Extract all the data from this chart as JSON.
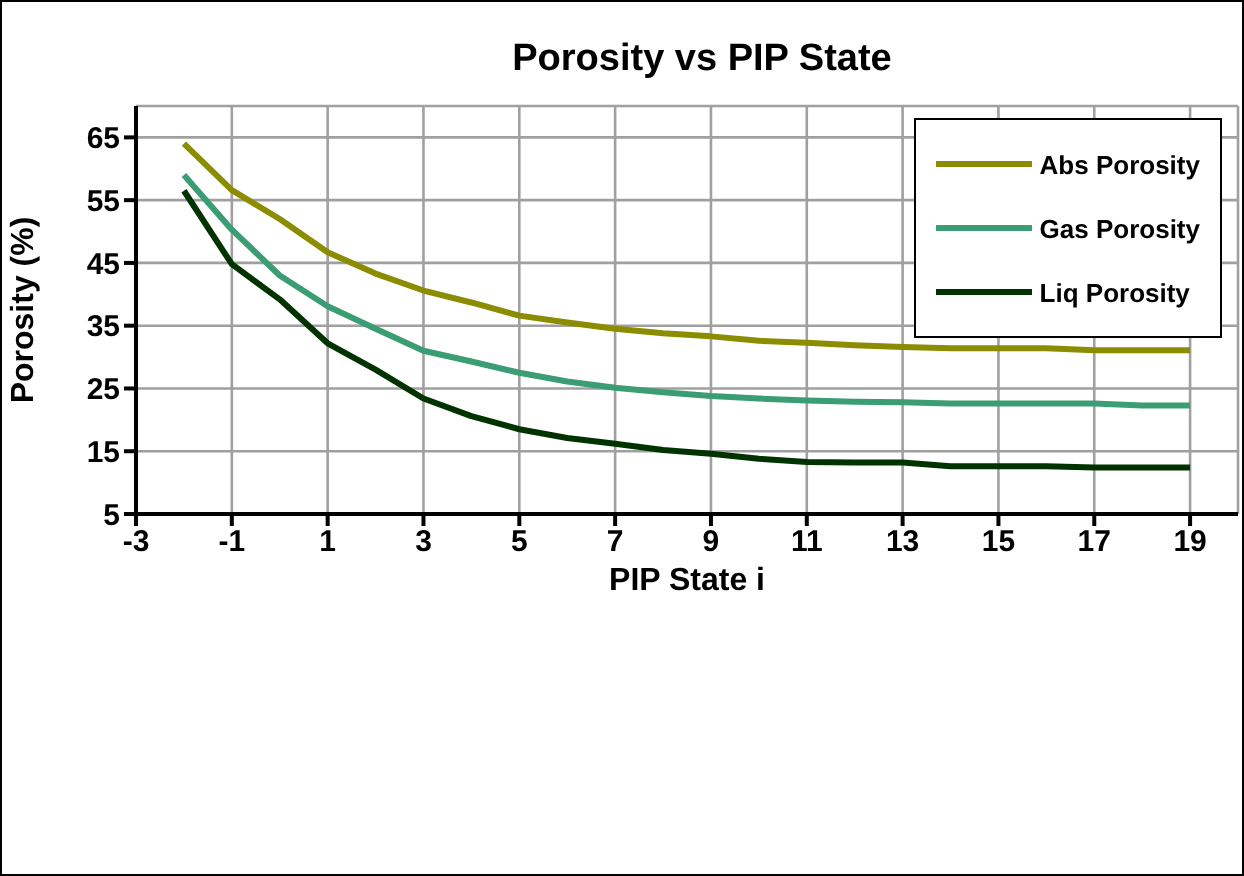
{
  "chart_data": {
    "type": "line",
    "title": "Porosity vs PIP State",
    "xlabel": "PIP State i",
    "ylabel": "Porosity (%)",
    "x": [
      -2,
      -1,
      0,
      1,
      2,
      3,
      4,
      5,
      6,
      7,
      8,
      9,
      10,
      11,
      12,
      13,
      14,
      15,
      16,
      17,
      18,
      19
    ],
    "series": [
      {
        "name": "Abs Porosity",
        "color": "#8c8c00",
        "values": [
          64.0,
          56.6,
          52.0,
          46.7,
          43.3,
          40.6,
          38.7,
          36.6,
          35.5,
          34.5,
          33.8,
          33.3,
          32.6,
          32.3,
          31.9,
          31.6,
          31.4,
          31.4,
          31.4,
          31.1,
          31.1,
          31.1
        ]
      },
      {
        "name": "Gas Porosity",
        "color": "#3a9d73",
        "values": [
          59.0,
          50.3,
          43.0,
          38.1,
          34.5,
          31.0,
          29.3,
          27.5,
          26.1,
          25.1,
          24.4,
          23.8,
          23.4,
          23.1,
          22.9,
          22.8,
          22.6,
          22.6,
          22.6,
          22.6,
          22.3,
          22.3
        ]
      },
      {
        "name": "Liq Porosity",
        "color": "#003300",
        "values": [
          56.5,
          44.8,
          39.2,
          32.2,
          28.0,
          23.4,
          20.6,
          18.5,
          17.1,
          16.2,
          15.2,
          14.6,
          13.8,
          13.3,
          13.2,
          13.2,
          12.6,
          12.6,
          12.6,
          12.4,
          12.4,
          12.4
        ]
      }
    ],
    "xlim": [
      -3,
      20
    ],
    "xticks": [
      -3,
      -1,
      1,
      3,
      5,
      7,
      9,
      11,
      13,
      15,
      17,
      19
    ],
    "ylim": [
      5,
      70
    ],
    "yticks": [
      5,
      15,
      25,
      35,
      45,
      55,
      65
    ],
    "grid": true,
    "legend": "top right",
    "marker": "none",
    "line_style": "solid"
  }
}
